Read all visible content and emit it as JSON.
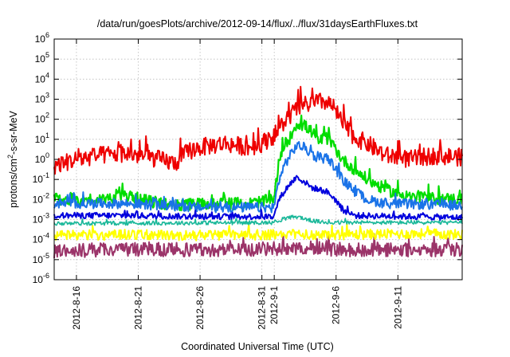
{
  "chart_data": {
    "type": "line",
    "title": "/data/run/goesPlots/archive/2012-09-14/flux/../flux/31daysEarthFluxes.txt",
    "xlabel": "Coordinated Universal Time (UTC)",
    "ylabel_parts": {
      "pre": "protons/cm",
      "sup": "2",
      "post": "-s-sr-MeV"
    },
    "y_scale": "log",
    "ylim_exp": [
      -6,
      6
    ],
    "y_ticks": [
      {
        "exp": -6,
        "label": "-6"
      },
      {
        "exp": -5,
        "label": "-5"
      },
      {
        "exp": -4,
        "label": "-4"
      },
      {
        "exp": -3,
        "label": "-3"
      },
      {
        "exp": -2,
        "label": "-2"
      },
      {
        "exp": -1,
        "label": "-1"
      },
      {
        "exp": 0,
        "label": "0"
      },
      {
        "exp": 1,
        "label": "1"
      },
      {
        "exp": 2,
        "label": "2"
      },
      {
        "exp": 3,
        "label": "3"
      },
      {
        "exp": 4,
        "label": "4"
      },
      {
        "exp": 5,
        "label": "5"
      },
      {
        "exp": 6,
        "label": "6"
      }
    ],
    "y_tick_base": "10",
    "x_range_days": [
      -1.8,
      31.2
    ],
    "x_ticks": [
      {
        "day": 0,
        "label": "2012-8-16"
      },
      {
        "day": 5,
        "label": "2012-8-21"
      },
      {
        "day": 10,
        "label": "2012-8-26"
      },
      {
        "day": 15,
        "label": "2012-8-31"
      },
      {
        "day": 16,
        "label": "2012-9-1"
      },
      {
        "day": 21,
        "label": "2012-9-6"
      },
      {
        "day": 26,
        "label": "2012-9-11"
      }
    ],
    "grid": true,
    "series": [
      {
        "color": "#9b3469",
        "points": [
          [
            -1.8,
            -4.6
          ],
          [
            2,
            -4.5
          ],
          [
            6,
            -4.5
          ],
          [
            10,
            -4.5
          ],
          [
            14,
            -4.5
          ],
          [
            18,
            -4.4
          ],
          [
            22,
            -4.5
          ],
          [
            26,
            -4.5
          ],
          [
            31.2,
            -4.5
          ]
        ],
        "noise": 0.35,
        "width": 2.0
      },
      {
        "color": "#ffff00",
        "points": [
          [
            -1.8,
            -3.8
          ],
          [
            4,
            -3.75
          ],
          [
            10,
            -3.8
          ],
          [
            16,
            -3.75
          ],
          [
            22,
            -3.75
          ],
          [
            28,
            -3.7
          ],
          [
            31.2,
            -3.75
          ]
        ],
        "noise": 0.25,
        "width": 2.0
      },
      {
        "color": "#1bb89a",
        "points": [
          [
            -1.8,
            -3.2
          ],
          [
            16,
            -3.15
          ],
          [
            16.8,
            -2.95
          ],
          [
            17.8,
            -2.85
          ],
          [
            19,
            -3.05
          ],
          [
            20,
            -3.15
          ],
          [
            31.2,
            -3.15
          ]
        ],
        "noise": 0.1,
        "width": 1.6
      },
      {
        "color": "#00dd00",
        "points": [
          [
            -1.8,
            -2.0
          ],
          [
            2,
            -2.0
          ],
          [
            4,
            -1.8
          ],
          [
            6,
            -2.1
          ],
          [
            8,
            -2.3
          ],
          [
            10,
            -2.2
          ],
          [
            14,
            -2.2
          ],
          [
            16,
            -2.0
          ],
          [
            16.3,
            -0.4
          ],
          [
            16.8,
            0.7
          ],
          [
            17.3,
            1.1
          ],
          [
            17.8,
            1.8
          ],
          [
            18.4,
            1.7
          ],
          [
            19,
            1.4
          ],
          [
            19.6,
            0.9
          ],
          [
            20.2,
            1.1
          ],
          [
            20.8,
            0.7
          ],
          [
            21.5,
            0.0
          ],
          [
            22.5,
            -0.5
          ],
          [
            23.5,
            -1.0
          ],
          [
            25,
            -1.5
          ],
          [
            27,
            -1.9
          ],
          [
            31.2,
            -2.0
          ]
        ],
        "noise": 0.3,
        "width": 2.2
      },
      {
        "color": "#1a73e8",
        "points": [
          [
            -1.8,
            -2.2
          ],
          [
            4,
            -2.2
          ],
          [
            10,
            -2.4
          ],
          [
            16,
            -2.4
          ],
          [
            16.3,
            -1.2
          ],
          [
            16.8,
            -0.3
          ],
          [
            17.3,
            0.2
          ],
          [
            17.8,
            0.7
          ],
          [
            18.4,
            0.6
          ],
          [
            19,
            0.3
          ],
          [
            19.6,
            0.0
          ],
          [
            20.2,
            0.1
          ],
          [
            20.8,
            -0.3
          ],
          [
            21.5,
            -1.0
          ],
          [
            22.5,
            -1.6
          ],
          [
            23.5,
            -2.0
          ],
          [
            25,
            -2.2
          ],
          [
            31.2,
            -2.3
          ]
        ],
        "noise": 0.25,
        "width": 2.0
      },
      {
        "color": "#0000dd",
        "points": [
          [
            -1.8,
            -2.8
          ],
          [
            4,
            -2.8
          ],
          [
            10,
            -2.85
          ],
          [
            16,
            -2.85
          ],
          [
            16.3,
            -2.1
          ],
          [
            16.8,
            -1.6
          ],
          [
            17.3,
            -1.2
          ],
          [
            17.8,
            -0.9
          ],
          [
            18.4,
            -1.1
          ],
          [
            19,
            -1.4
          ],
          [
            19.6,
            -1.5
          ],
          [
            20.2,
            -1.6
          ],
          [
            20.8,
            -1.9
          ],
          [
            21.5,
            -2.5
          ],
          [
            22.5,
            -2.8
          ],
          [
            31.2,
            -2.9
          ]
        ],
        "noise": 0.15,
        "width": 2.0
      },
      {
        "color": "#ee0000",
        "points": [
          [
            -1.8,
            -0.3
          ],
          [
            0,
            0.0
          ],
          [
            2,
            0.2
          ],
          [
            4,
            0.3
          ],
          [
            6,
            0.1
          ],
          [
            8,
            -0.2
          ],
          [
            9,
            0.4
          ],
          [
            10,
            0.6
          ],
          [
            12,
            0.8
          ],
          [
            14,
            0.6
          ],
          [
            15,
            0.8
          ],
          [
            16,
            1.2
          ],
          [
            16.5,
            1.6
          ],
          [
            17,
            2.0
          ],
          [
            17.8,
            2.5
          ],
          [
            18.5,
            2.7
          ],
          [
            19.2,
            2.8
          ],
          [
            20,
            2.9
          ],
          [
            20.6,
            2.7
          ],
          [
            21,
            2.4
          ],
          [
            21.5,
            1.8
          ],
          [
            22.5,
            1.1
          ],
          [
            23.5,
            0.8
          ],
          [
            25,
            0.2
          ],
          [
            27,
            0.0
          ],
          [
            29,
            0.2
          ],
          [
            31.2,
            0.1
          ]
        ],
        "noise": 0.45,
        "width": 2.0
      }
    ]
  }
}
